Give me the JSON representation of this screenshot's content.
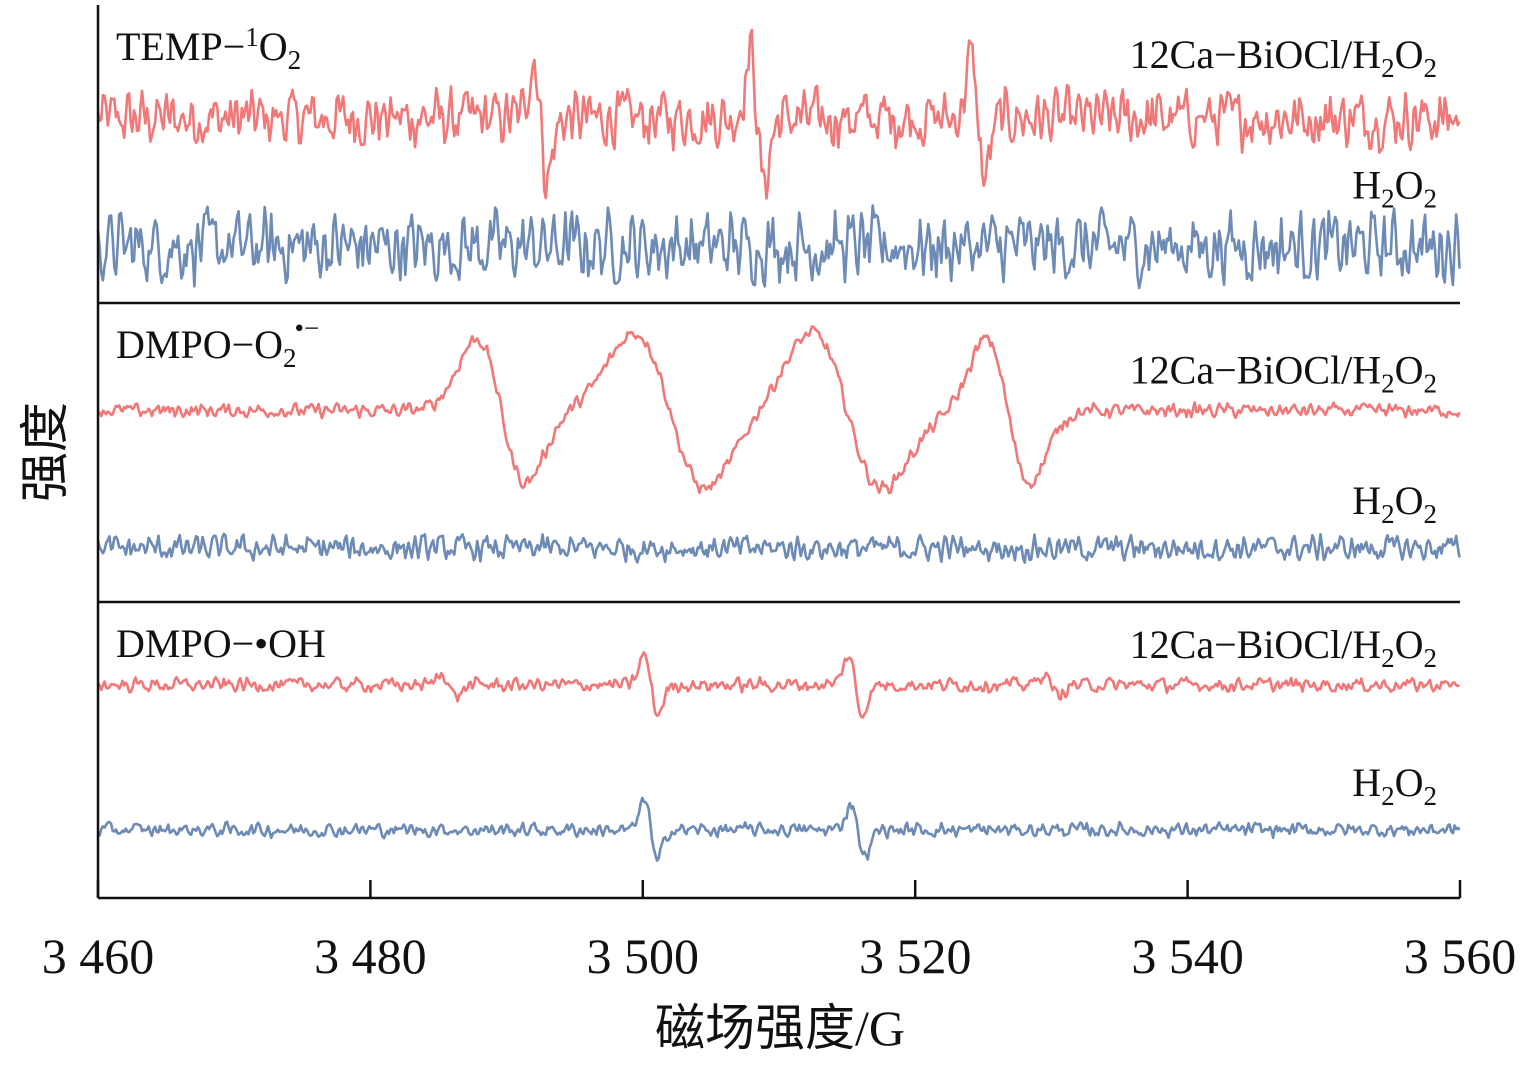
{
  "chart_data": {
    "type": "line",
    "title": "",
    "xlabel": "磁场强度/G",
    "ylabel": "强度",
    "xlim": [
      3460,
      3560
    ],
    "xticks": [
      3460,
      3480,
      3500,
      3520,
      3540,
      3560
    ],
    "xtick_labels": [
      "3 460",
      "3 480",
      "3 500",
      "3 520",
      "3 540",
      "3 560"
    ],
    "ylim_each_panel": [
      0,
      100
    ],
    "grid": false,
    "colors": {
      "sample": "#f07878",
      "control": "#6d8bb5",
      "axis": "#111111"
    },
    "panels": [
      {
        "label": {
          "a": "TEMP−",
          "sup": "1",
          "b": "O",
          "sub": "2",
          "sup2": ""
        },
        "series": [
          {
            "name": {
              "a": "12Ca−BiOCl/H",
              "s1": "2",
              "b": "O",
              "s2": "2"
            },
            "role": "sample",
            "baseline": 62,
            "noise": 9,
            "features": [
              {
                "center": 3492.5,
                "amplitude": 20,
                "width": 0.5
              },
              {
                "center": 3508.4,
                "amplitude": 22,
                "width": 0.5
              },
              {
                "center": 3524.6,
                "amplitude": 20,
                "width": 0.5
              }
            ]
          },
          {
            "name": {
              "a": "H",
              "s1": "2",
              "b": "O",
              "s2": "2"
            },
            "role": "control",
            "baseline": 19,
            "noise": 11,
            "features": []
          }
        ]
      },
      {
        "label": {
          "a": "DMPO−O",
          "sup": "",
          "b": "",
          "sub": "2",
          "sup2": "•−"
        },
        "series": [
          {
            "name": {
              "a": "12Ca−BiOCl/H",
              "s1": "2",
              "b": "O",
              "s2": "2"
            },
            "role": "sample",
            "baseline": 64,
            "noise": 2.2,
            "features": [
              {
                "center": 3489.6,
                "amplitude": 24,
                "width": 1.8
              },
              {
                "center": 3502.0,
                "amplitude": 26,
                "width": 2.6
              },
              {
                "center": 3515.0,
                "amplitude": 26,
                "width": 2.6
              },
              {
                "center": 3526.8,
                "amplitude": 24,
                "width": 1.6
              }
            ]
          },
          {
            "name": {
              "a": "H",
              "s1": "2",
              "b": "O",
              "s2": "2"
            },
            "role": "control",
            "baseline": 18,
            "noise": 4,
            "features": []
          }
        ]
      },
      {
        "label": {
          "a": "DMPO−•OH",
          "sup": "",
          "b": "",
          "sub": "",
          "sup2": ""
        },
        "series": [
          {
            "name": {
              "a": "12Ca−BiOCl/H",
              "s1": "2",
              "b": "O",
              "s2": "2"
            },
            "role": "sample",
            "baseline": 72,
            "noise": 2.2,
            "features": [
              {
                "center": 3485.8,
                "amplitude": 4,
                "width": 0.5
              },
              {
                "center": 3500.6,
                "amplitude": 10,
                "width": 0.5
              },
              {
                "center": 3515.6,
                "amplitude": 10,
                "width": 0.5
              },
              {
                "center": 3530.0,
                "amplitude": 4,
                "width": 0.5
              }
            ]
          },
          {
            "name": {
              "a": "H",
              "s1": "2",
              "b": "O",
              "s2": "2"
            },
            "role": "control",
            "baseline": 23,
            "noise": 2.2,
            "features": [
              {
                "center": 3500.6,
                "amplitude": 11,
                "width": 0.45
              },
              {
                "center": 3515.8,
                "amplitude": 9,
                "width": 0.5
              }
            ]
          }
        ]
      }
    ]
  }
}
